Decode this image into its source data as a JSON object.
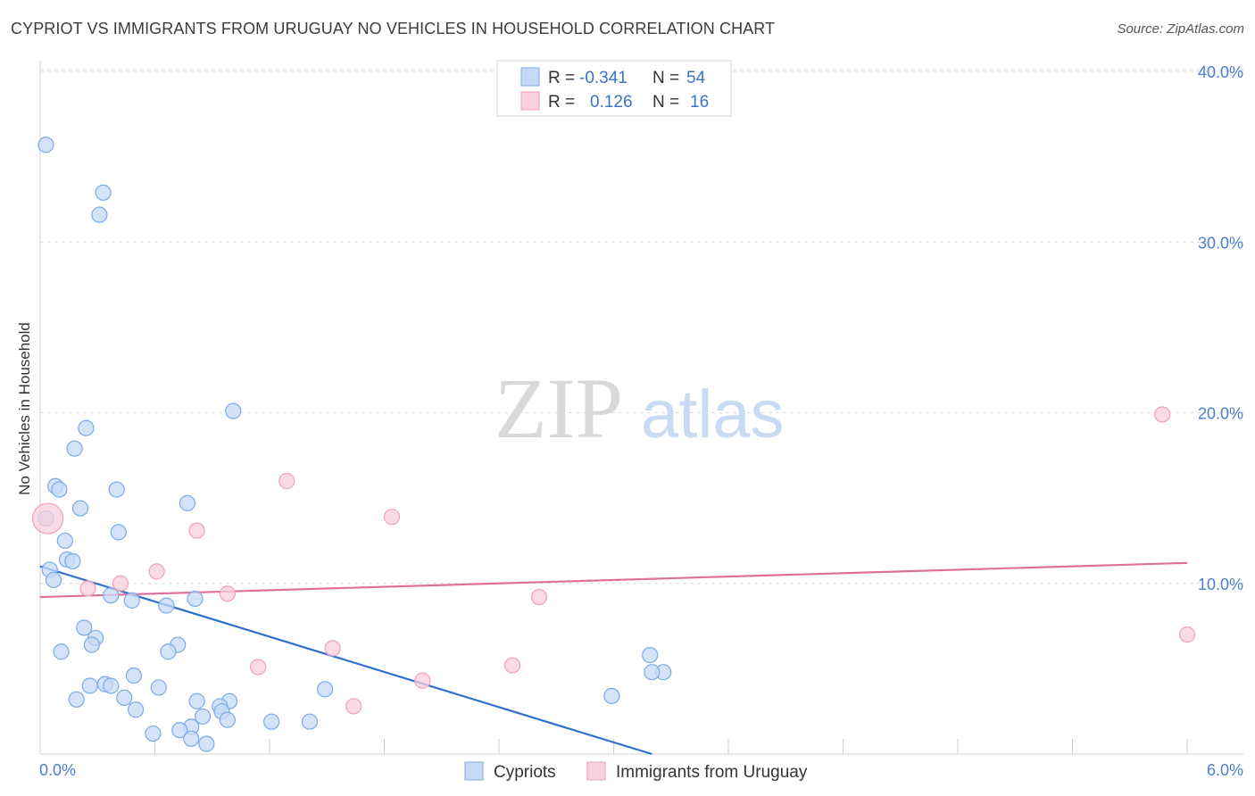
{
  "title": "CYPRIOT VS IMMIGRANTS FROM URUGUAY NO VEHICLES IN HOUSEHOLD CORRELATION CHART",
  "source": "Source: ZipAtlas.com",
  "chart_data": {
    "type": "scatter",
    "xlabel": "",
    "ylabel": "No Vehicles in Household",
    "xlim": [
      0,
      6
    ],
    "ylim": [
      0,
      40
    ],
    "x_tick_labels": [
      "0.0%",
      "6.0%"
    ],
    "y_ticks": [
      10,
      20,
      30,
      40
    ],
    "y_tick_labels": [
      "10.0%",
      "20.0%",
      "30.0%",
      "40.0%"
    ],
    "watermark": {
      "zip": "ZIP",
      "atlas": "atlas"
    },
    "legend_stats": [
      {
        "r_label": "R =",
        "r_value": "-0.341",
        "n_label": "N =",
        "n_value": "54"
      },
      {
        "r_label": "R =",
        "r_value": "0.126",
        "n_label": "N =",
        "n_value": "16"
      }
    ],
    "series": [
      {
        "name": "Cypriots",
        "color": "#7aaae8",
        "fill": "#c5daf5",
        "trend": {
          "x0": 0.0,
          "y0": 11.0,
          "x1": 3.2,
          "y1": 0.0,
          "color": "#2f6fcf"
        },
        "points": [
          {
            "x": 0.03,
            "y": 35.7
          },
          {
            "x": 0.33,
            "y": 32.9
          },
          {
            "x": 0.31,
            "y": 31.6
          },
          {
            "x": 1.01,
            "y": 20.1
          },
          {
            "x": 0.24,
            "y": 19.1
          },
          {
            "x": 0.18,
            "y": 17.9
          },
          {
            "x": 0.08,
            "y": 15.7
          },
          {
            "x": 0.1,
            "y": 15.5
          },
          {
            "x": 0.4,
            "y": 15.5
          },
          {
            "x": 0.77,
            "y": 14.7
          },
          {
            "x": 0.21,
            "y": 14.4
          },
          {
            "x": 0.03,
            "y": 13.8
          },
          {
            "x": 0.41,
            "y": 13.0
          },
          {
            "x": 0.13,
            "y": 12.5
          },
          {
            "x": 0.14,
            "y": 11.4
          },
          {
            "x": 0.17,
            "y": 11.3
          },
          {
            "x": 0.05,
            "y": 10.8
          },
          {
            "x": 0.07,
            "y": 10.2
          },
          {
            "x": 0.37,
            "y": 9.3
          },
          {
            "x": 0.48,
            "y": 9.0
          },
          {
            "x": 0.81,
            "y": 9.1
          },
          {
            "x": 0.66,
            "y": 8.7
          },
          {
            "x": 0.23,
            "y": 7.4
          },
          {
            "x": 0.29,
            "y": 6.8
          },
          {
            "x": 0.27,
            "y": 6.4
          },
          {
            "x": 0.72,
            "y": 6.4
          },
          {
            "x": 0.11,
            "y": 6.0
          },
          {
            "x": 0.67,
            "y": 6.0
          },
          {
            "x": 3.19,
            "y": 5.8
          },
          {
            "x": 3.26,
            "y": 4.8
          },
          {
            "x": 3.2,
            "y": 4.8
          },
          {
            "x": 0.49,
            "y": 4.6
          },
          {
            "x": 0.34,
            "y": 4.1
          },
          {
            "x": 0.26,
            "y": 4.0
          },
          {
            "x": 0.37,
            "y": 4.0
          },
          {
            "x": 0.62,
            "y": 3.9
          },
          {
            "x": 1.49,
            "y": 3.8
          },
          {
            "x": 2.99,
            "y": 3.4
          },
          {
            "x": 0.19,
            "y": 3.2
          },
          {
            "x": 0.44,
            "y": 3.3
          },
          {
            "x": 0.82,
            "y": 3.1
          },
          {
            "x": 0.99,
            "y": 3.1
          },
          {
            "x": 0.94,
            "y": 2.8
          },
          {
            "x": 0.5,
            "y": 2.6
          },
          {
            "x": 0.95,
            "y": 2.5
          },
          {
            "x": 0.85,
            "y": 2.2
          },
          {
            "x": 0.98,
            "y": 2.0
          },
          {
            "x": 1.21,
            "y": 1.9
          },
          {
            "x": 1.41,
            "y": 1.9
          },
          {
            "x": 0.79,
            "y": 1.6
          },
          {
            "x": 0.73,
            "y": 1.4
          },
          {
            "x": 0.59,
            "y": 1.2
          },
          {
            "x": 0.79,
            "y": 0.9
          },
          {
            "x": 0.87,
            "y": 0.6
          }
        ]
      },
      {
        "name": "Immigrants from Uruguay",
        "color": "#f1a0b9",
        "fill": "#f8cfdc",
        "trend": {
          "x0": 0.0,
          "y0": 9.2,
          "x1": 6.0,
          "y1": 11.2,
          "color": "#e0709a"
        },
        "points": [
          {
            "x": 5.87,
            "y": 19.9
          },
          {
            "x": 1.29,
            "y": 16.0
          },
          {
            "x": 1.84,
            "y": 13.9
          },
          {
            "x": 0.82,
            "y": 13.1
          },
          {
            "x": 0.04,
            "y": 13.8,
            "big": true
          },
          {
            "x": 0.61,
            "y": 10.7
          },
          {
            "x": 0.42,
            "y": 10.0
          },
          {
            "x": 0.25,
            "y": 9.7
          },
          {
            "x": 0.98,
            "y": 9.4
          },
          {
            "x": 2.61,
            "y": 9.2
          },
          {
            "x": 6.0,
            "y": 7.0
          },
          {
            "x": 1.53,
            "y": 6.2
          },
          {
            "x": 1.14,
            "y": 5.1
          },
          {
            "x": 2.47,
            "y": 5.2
          },
          {
            "x": 2.0,
            "y": 4.3
          },
          {
            "x": 1.64,
            "y": 2.8
          }
        ]
      }
    ]
  }
}
